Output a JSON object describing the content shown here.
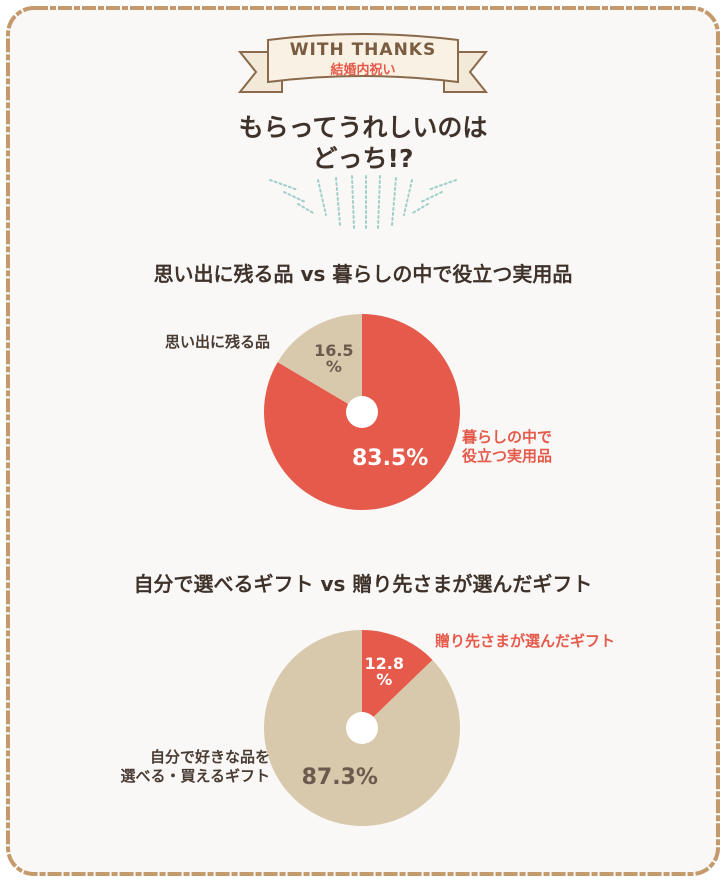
{
  "banner": {
    "title": "WITH THANKS",
    "subtitle": "結婚内祝い"
  },
  "heading": "もらってうれしいのは\nどっち!?",
  "chart_data": [
    {
      "type": "pie",
      "title": "思い出に残る品 vs 暮らしの中で役立つ実用品",
      "categories": [
        "暮らしの中で\n役立つ実用品",
        "思い出に残る品"
      ],
      "values": [
        83.5,
        16.5
      ],
      "value_labels": [
        "83.5%",
        "16.5\n%"
      ],
      "colors": [
        "#e65a4b",
        "#d9c9ac"
      ],
      "label_colors": [
        "#e65a4b",
        "#4a3c33"
      ],
      "value_label_colors": [
        "#ffffff",
        "#6b5a4d"
      ]
    },
    {
      "type": "pie",
      "title": "自分で選べるギフト vs 贈り先さまが選んだギフト",
      "categories": [
        "贈り先さまが選んだギフト",
        "自分で好きな品を\n選べる・買えるギフト"
      ],
      "values": [
        12.8,
        87.3
      ],
      "value_labels": [
        "12.8\n%",
        "87.3%"
      ],
      "colors": [
        "#e65a4b",
        "#d9c9ac"
      ],
      "label_colors": [
        "#e65a4b",
        "#4a3c33"
      ],
      "value_label_colors": [
        "#ffffff",
        "#6b5a4d"
      ]
    }
  ]
}
